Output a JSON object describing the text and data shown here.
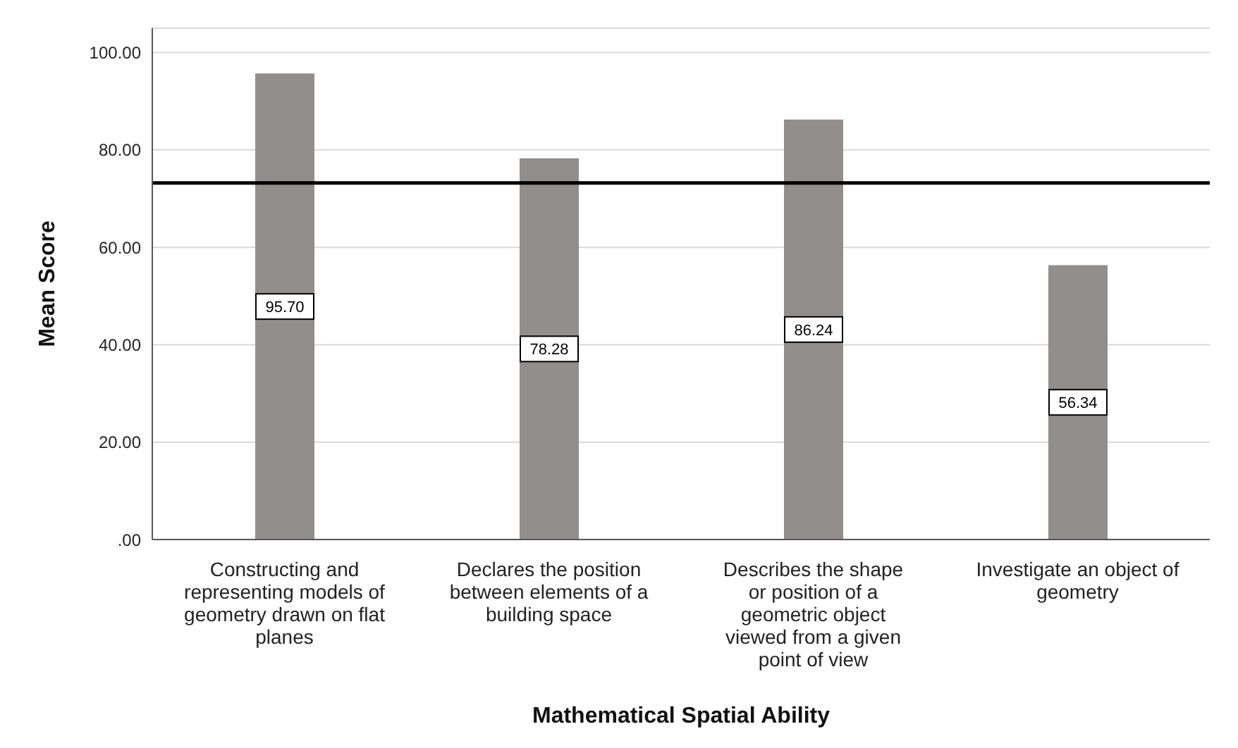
{
  "chart_data": {
    "type": "bar",
    "categories": [
      "Constructing and\nrepresenting models of\ngeometry drawn on flat\nplanes",
      "Declares the position\nbetween elements of a\nbuilding space",
      "Describes the shape\nor position of a\ngeometric object\nviewed from a given\npoint of view",
      "Investigate an object of\ngeometry"
    ],
    "values": [
      95.7,
      78.28,
      86.24,
      56.34
    ],
    "value_labels": [
      "95.70",
      "78.28",
      "86.24",
      "56.34"
    ],
    "color": "#928e8d",
    "xlabel": "Mathematical Spatial Ability",
    "ylabel": "Mean Score",
    "ylim": [
      0,
      105
    ],
    "yticks": [
      {
        "value": 0,
        "label": ".00"
      },
      {
        "value": 20,
        "label": "20.00"
      },
      {
        "value": 40,
        "label": "40.00"
      },
      {
        "value": 60,
        "label": "60.00"
      },
      {
        "value": 80,
        "label": "80.00"
      },
      {
        "value": 100,
        "label": "100.00"
      }
    ],
    "grid": "y",
    "ref_lines": [
      {
        "axis": "y",
        "value": 73.2,
        "color": "#000000"
      }
    ]
  }
}
